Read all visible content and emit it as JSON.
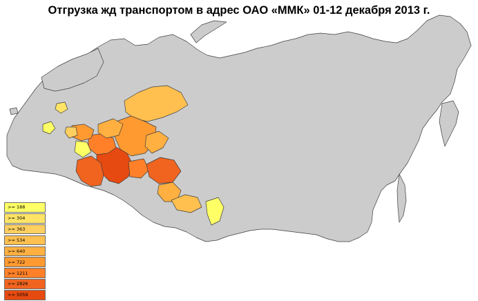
{
  "title": "Отгрузка жд транспортом в адрес ОАО «ММК» 01-12 декабря 2013 г.",
  "colors": {
    "region_default": "#cccccc",
    "region_stroke": "#3c3c3c",
    "legend_border": "#6a6a6a"
  },
  "legend": [
    {
      "value": "188",
      "color": "#ffff66"
    },
    {
      "value": "304",
      "color": "#ffe466"
    },
    {
      "value": "363",
      "color": "#ffd060"
    },
    {
      "value": "534",
      "color": "#ffc050"
    },
    {
      "value": "640",
      "color": "#ffb040"
    },
    {
      "value": "722",
      "color": "#ff9a30"
    },
    {
      "value": "1211",
      "color": "#ff8028"
    },
    {
      "value": "2826",
      "color": "#f06420"
    },
    {
      "value": "5059",
      "color": "#e64a10"
    }
  ]
}
